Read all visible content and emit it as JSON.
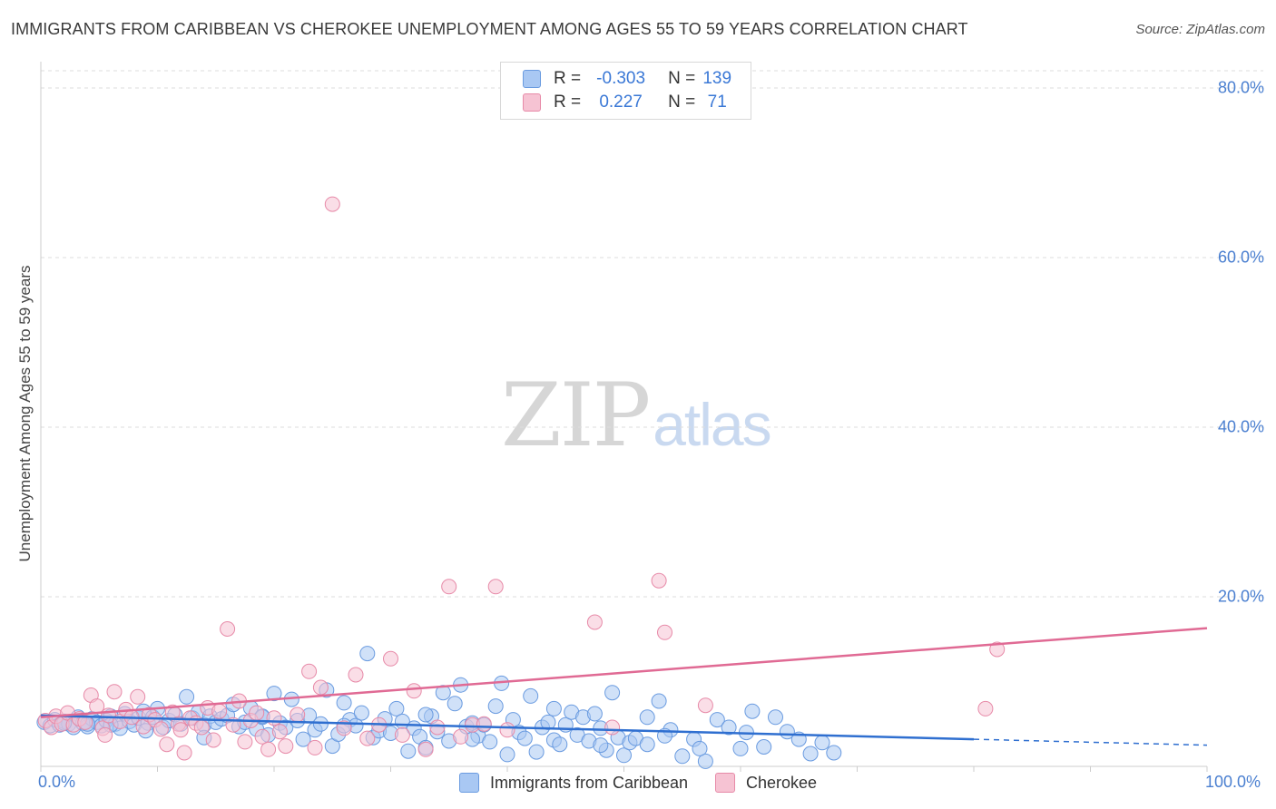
{
  "header": {
    "title": "IMMIGRANTS FROM CARIBBEAN VS CHEROKEE UNEMPLOYMENT AMONG AGES 55 TO 59 YEARS CORRELATION CHART",
    "source": "Source: ZipAtlas.com"
  },
  "watermark": {
    "part1": "ZIP",
    "part2": "atlas"
  },
  "legend": {
    "rows": [
      {
        "r_label": "R =",
        "r_value": "-0.303",
        "n_label": "N =",
        "n_value": "139"
      },
      {
        "r_label": "R =",
        "r_value": "0.227",
        "n_label": "N =",
        "n_value": "71"
      }
    ]
  },
  "colors": {
    "blue_fill": "#a9c8f3",
    "blue_stroke": "#6a9be0",
    "blue_line": "#2f6fd0",
    "pink_fill": "#f6c3d3",
    "pink_stroke": "#e78aa8",
    "pink_line": "#e06a94",
    "grid": "#dddddd",
    "tick_text": "#4a7fd0"
  },
  "chart_data": {
    "type": "scatter",
    "title": "IMMIGRANTS FROM CARIBBEAN VS CHEROKEE UNEMPLOYMENT AMONG AGES 55 TO 59 YEARS CORRELATION CHART",
    "xlabel": "",
    "ylabel": "Unemployment Among Ages 55 to 59 years",
    "xlim": [
      0,
      100
    ],
    "ylim": [
      0,
      85
    ],
    "x_tick_labels": [
      "0.0%",
      "100.0%"
    ],
    "y_ticks": [
      20,
      40,
      60,
      80
    ],
    "y_tick_labels": [
      "20.0%",
      "40.0%",
      "60.0%",
      "80.0%"
    ],
    "grid": true,
    "series": [
      {
        "name": "Immigrants from Caribbean",
        "color": "blue",
        "R": -0.303,
        "N": 139,
        "trend": {
          "x0": 0,
          "y0": 6.0,
          "x_solid_end": 80,
          "y_solid_end": 3.2,
          "x1": 100,
          "y1": 2.5
        },
        "points": [
          [
            0.3,
            5.2
          ],
          [
            0.8,
            4.8
          ],
          [
            1.2,
            5.5
          ],
          [
            1.6,
            4.9
          ],
          [
            2.0,
            5.3
          ],
          [
            2.4,
            5.0
          ],
          [
            2.8,
            4.6
          ],
          [
            3.2,
            5.8
          ],
          [
            3.6,
            5.1
          ],
          [
            4.0,
            4.7
          ],
          [
            4.4,
            5.6
          ],
          [
            4.8,
            5.2
          ],
          [
            5.2,
            4.8
          ],
          [
            5.6,
            5.4
          ],
          [
            6.0,
            5.9
          ],
          [
            6.4,
            5.0
          ],
          [
            6.8,
            4.5
          ],
          [
            7.2,
            6.2
          ],
          [
            7.6,
            5.3
          ],
          [
            8.0,
            4.9
          ],
          [
            8.4,
            5.7
          ],
          [
            8.8,
            6.5
          ],
          [
            9.2,
            5.1
          ],
          [
            9.6,
            5.8
          ],
          [
            10.0,
            6.8
          ],
          [
            10.5,
            4.6
          ],
          [
            11.0,
            5.4
          ],
          [
            11.5,
            6.1
          ],
          [
            12.0,
            5.0
          ],
          [
            12.5,
            8.2
          ],
          [
            13.0,
            5.7
          ],
          [
            13.5,
            6.4
          ],
          [
            14.0,
            4.9
          ],
          [
            14.5,
            5.9
          ],
          [
            15.0,
            5.2
          ],
          [
            15.5,
            5.6
          ],
          [
            16.0,
            6.0
          ],
          [
            16.5,
            7.3
          ],
          [
            17.0,
            4.7
          ],
          [
            17.5,
            5.2
          ],
          [
            18.0,
            6.9
          ],
          [
            18.5,
            4.4
          ],
          [
            19.0,
            5.8
          ],
          [
            19.5,
            3.7
          ],
          [
            20.0,
            8.6
          ],
          [
            20.5,
            5.1
          ],
          [
            21.0,
            4.6
          ],
          [
            21.5,
            7.9
          ],
          [
            22.0,
            5.4
          ],
          [
            22.5,
            3.2
          ],
          [
            23.0,
            6.0
          ],
          [
            23.5,
            4.3
          ],
          [
            24.0,
            5.0
          ],
          [
            24.5,
            9.0
          ],
          [
            25.0,
            2.4
          ],
          [
            25.5,
            3.8
          ],
          [
            26.0,
            7.5
          ],
          [
            26.5,
            5.5
          ],
          [
            27.0,
            4.8
          ],
          [
            27.5,
            6.3
          ],
          [
            28.0,
            13.3
          ],
          [
            28.5,
            3.4
          ],
          [
            29.0,
            4.2
          ],
          [
            29.5,
            5.6
          ],
          [
            30.0,
            3.9
          ],
          [
            30.5,
            6.8
          ],
          [
            31.0,
            5.3
          ],
          [
            31.5,
            1.8
          ],
          [
            32.0,
            4.5
          ],
          [
            32.5,
            3.5
          ],
          [
            33.0,
            2.2
          ],
          [
            33.5,
            5.9
          ],
          [
            34.0,
            4.1
          ],
          [
            34.5,
            8.7
          ],
          [
            35.0,
            3.0
          ],
          [
            35.5,
            7.4
          ],
          [
            36.0,
            9.6
          ],
          [
            36.5,
            4.7
          ],
          [
            37.0,
            5.1
          ],
          [
            37.5,
            3.6
          ],
          [
            38.0,
            4.9
          ],
          [
            38.5,
            2.9
          ],
          [
            39.0,
            7.1
          ],
          [
            39.5,
            9.8
          ],
          [
            40.0,
            1.4
          ],
          [
            40.5,
            5.5
          ],
          [
            41.0,
            4.0
          ],
          [
            41.5,
            3.3
          ],
          [
            42.0,
            8.3
          ],
          [
            42.5,
            1.7
          ],
          [
            43.0,
            4.6
          ],
          [
            43.5,
            5.2
          ],
          [
            44.0,
            3.1
          ],
          [
            44.5,
            2.6
          ],
          [
            45.0,
            4.9
          ],
          [
            45.5,
            6.4
          ],
          [
            46.0,
            3.7
          ],
          [
            46.5,
            5.8
          ],
          [
            47.0,
            3.0
          ],
          [
            47.5,
            6.2
          ],
          [
            48.0,
            4.5
          ],
          [
            48.5,
            1.9
          ],
          [
            49.0,
            8.7
          ],
          [
            49.5,
            3.4
          ],
          [
            50.0,
            1.3
          ],
          [
            50.5,
            2.8
          ],
          [
            51.0,
            3.3
          ],
          [
            52.0,
            5.8
          ],
          [
            53.0,
            7.7
          ],
          [
            54.0,
            4.3
          ],
          [
            55.0,
            1.2
          ],
          [
            56.0,
            3.2
          ],
          [
            57.0,
            0.6
          ],
          [
            58.0,
            5.5
          ],
          [
            59.0,
            4.6
          ],
          [
            60.0,
            2.1
          ],
          [
            61.0,
            6.5
          ],
          [
            62.0,
            2.3
          ],
          [
            63.0,
            5.8
          ],
          [
            64.0,
            4.1
          ],
          [
            65.0,
            3.2
          ],
          [
            66.0,
            1.5
          ],
          [
            67.0,
            2.8
          ],
          [
            68.0,
            1.6
          ],
          [
            53.5,
            3.6
          ],
          [
            37.0,
            3.2
          ],
          [
            33.0,
            6.1
          ],
          [
            26.0,
            4.8
          ],
          [
            19.0,
            5.9
          ],
          [
            14.0,
            3.4
          ],
          [
            9.0,
            4.2
          ],
          [
            6.0,
            4.9
          ],
          [
            4.0,
            5.0
          ],
          [
            2.0,
            5.1
          ],
          [
            44.0,
            6.8
          ],
          [
            48.0,
            2.5
          ],
          [
            52.0,
            2.6
          ],
          [
            56.5,
            2.1
          ],
          [
            60.5,
            4.0
          ]
        ]
      },
      {
        "name": "Cherokee",
        "color": "pink",
        "R": 0.227,
        "N": 71,
        "trend": {
          "x0": 0,
          "y0": 5.8,
          "x1": 100,
          "y1": 16.3
        },
        "points": [
          [
            0.4,
            5.4
          ],
          [
            0.9,
            4.6
          ],
          [
            1.3,
            5.9
          ],
          [
            1.8,
            5.0
          ],
          [
            2.3,
            6.3
          ],
          [
            2.8,
            4.9
          ],
          [
            3.3,
            5.6
          ],
          [
            3.8,
            5.2
          ],
          [
            4.3,
            8.4
          ],
          [
            4.8,
            7.1
          ],
          [
            5.3,
            4.5
          ],
          [
            5.8,
            6.0
          ],
          [
            6.3,
            8.8
          ],
          [
            6.8,
            5.3
          ],
          [
            7.3,
            6.7
          ],
          [
            7.8,
            5.8
          ],
          [
            8.3,
            8.2
          ],
          [
            8.8,
            4.7
          ],
          [
            9.3,
            6.1
          ],
          [
            9.8,
            5.5
          ],
          [
            10.3,
            4.4
          ],
          [
            10.8,
            2.6
          ],
          [
            11.3,
            6.4
          ],
          [
            11.8,
            5.0
          ],
          [
            12.3,
            1.6
          ],
          [
            12.8,
            5.7
          ],
          [
            13.3,
            5.1
          ],
          [
            13.8,
            4.6
          ],
          [
            14.3,
            6.9
          ],
          [
            14.8,
            3.1
          ],
          [
            15.3,
            6.5
          ],
          [
            16.0,
            16.2
          ],
          [
            16.5,
            4.9
          ],
          [
            17.0,
            7.7
          ],
          [
            17.5,
            2.9
          ],
          [
            18.0,
            5.4
          ],
          [
            18.5,
            6.3
          ],
          [
            19.0,
            3.5
          ],
          [
            19.5,
            2.0
          ],
          [
            20.0,
            5.7
          ],
          [
            20.5,
            4.1
          ],
          [
            21.0,
            2.4
          ],
          [
            22.0,
            6.1
          ],
          [
            23.0,
            11.2
          ],
          [
            23.5,
            2.2
          ],
          [
            24.0,
            9.3
          ],
          [
            25.0,
            66.3
          ],
          [
            26.0,
            4.5
          ],
          [
            27.0,
            10.8
          ],
          [
            28.0,
            3.3
          ],
          [
            29.0,
            4.9
          ],
          [
            30.0,
            12.7
          ],
          [
            31.0,
            3.7
          ],
          [
            32.0,
            8.9
          ],
          [
            33.0,
            2.0
          ],
          [
            34.0,
            4.6
          ],
          [
            35.0,
            21.2
          ],
          [
            36.0,
            3.5
          ],
          [
            37.0,
            4.9
          ],
          [
            38.0,
            5.0
          ],
          [
            39.0,
            21.2
          ],
          [
            40.0,
            4.3
          ],
          [
            47.5,
            17.0
          ],
          [
            49.0,
            4.6
          ],
          [
            53.0,
            21.9
          ],
          [
            53.5,
            15.8
          ],
          [
            57.0,
            7.2
          ],
          [
            81.0,
            6.8
          ],
          [
            82.0,
            13.8
          ],
          [
            5.5,
            3.7
          ],
          [
            12.0,
            4.3
          ]
        ]
      }
    ]
  },
  "bottom_legend": {
    "items": [
      {
        "label": "Immigrants from Caribbean"
      },
      {
        "label": "Cherokee"
      }
    ]
  }
}
